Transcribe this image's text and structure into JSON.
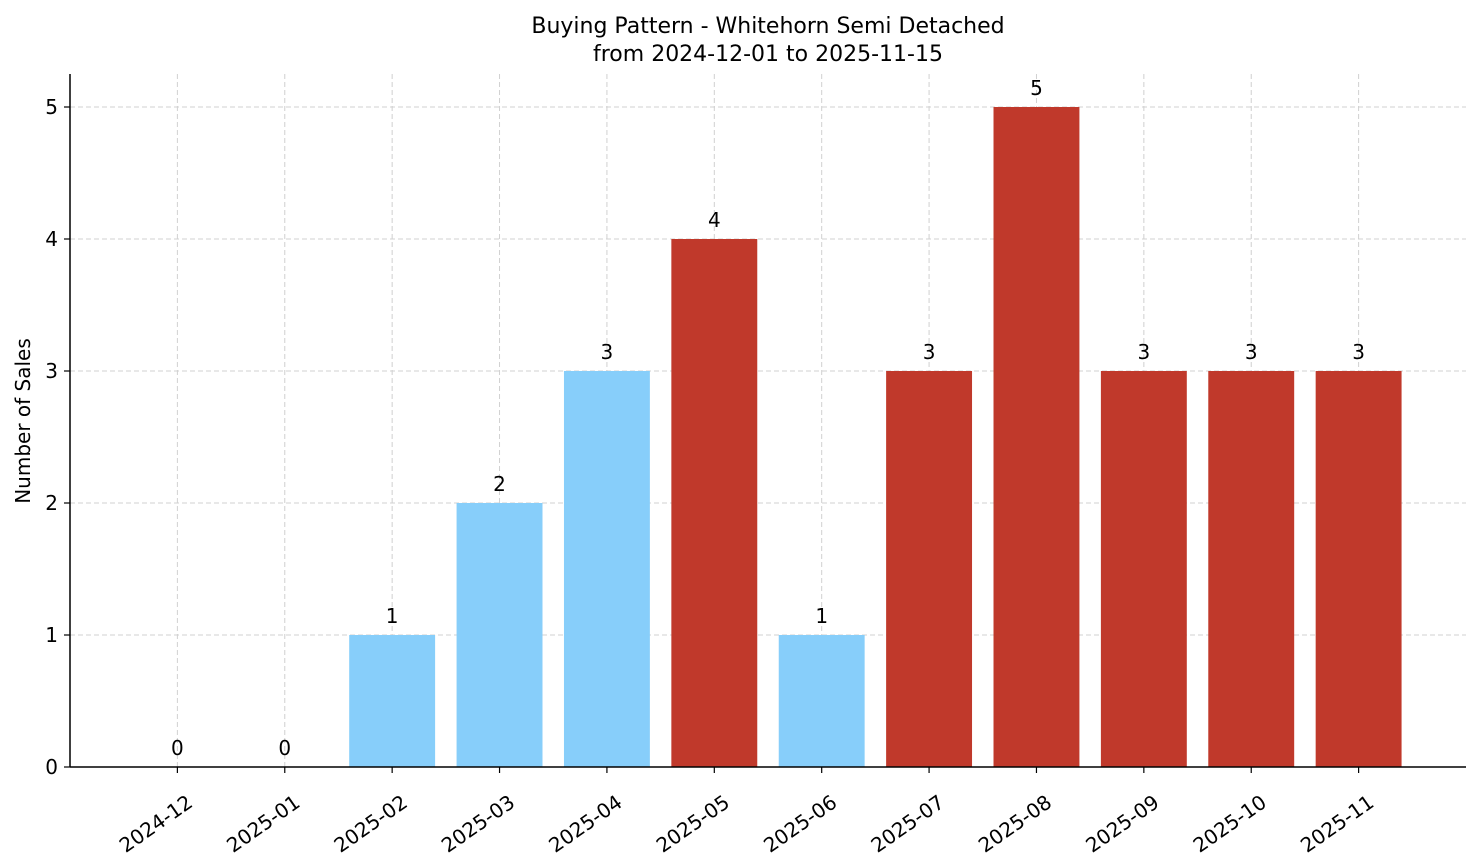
{
  "chart_data": {
    "type": "bar",
    "title": "Buying Pattern - Whitehorn Semi Detached",
    "subtitle": "from 2024-12-01 to 2025-11-15",
    "y_label": "Number of Sales",
    "categories": [
      "2024-12",
      "2025-01",
      "2025-02",
      "2025-03",
      "2025-04",
      "2025-05",
      "2025-06",
      "2025-07",
      "2025-08",
      "2025-09",
      "2025-10",
      "2025-11"
    ],
    "values": [
      0,
      0,
      1,
      2,
      3,
      4,
      1,
      3,
      5,
      3,
      3,
      3
    ],
    "colors": [
      "#87cefa",
      "#87cefa",
      "#87cefa",
      "#87cefa",
      "#87cefa",
      "#c0392b",
      "#87cefa",
      "#c0392b",
      "#c0392b",
      "#c0392b",
      "#c0392b",
      "#c0392b"
    ],
    "ylim": [
      0,
      5.25
    ],
    "yticks": [
      0,
      1,
      2,
      3,
      4,
      5
    ],
    "grid": true
  }
}
